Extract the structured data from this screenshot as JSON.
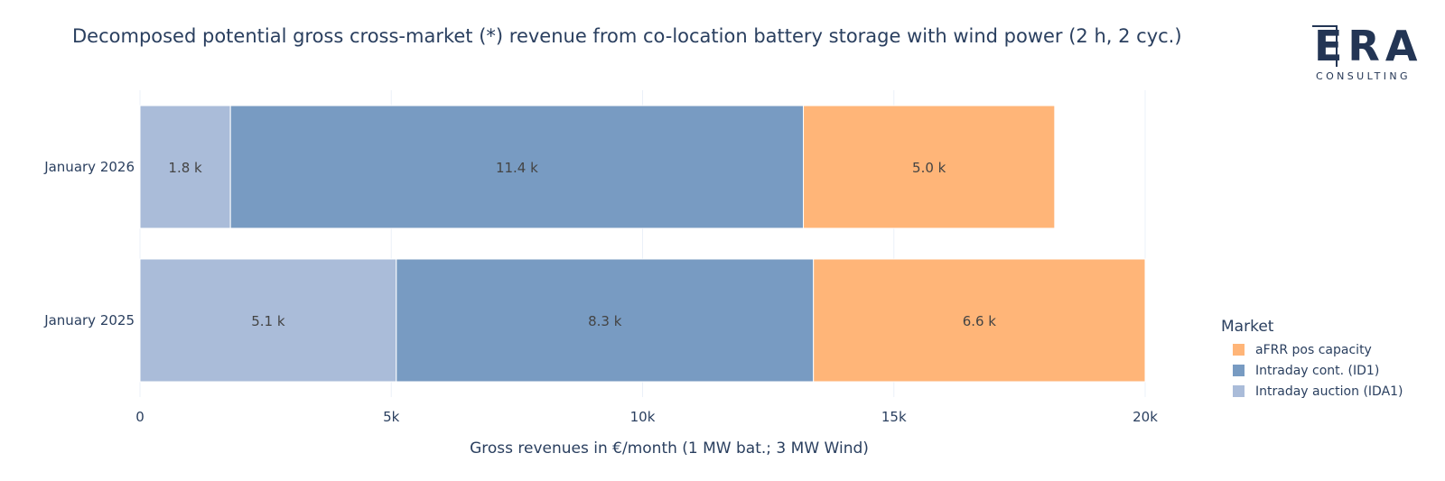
{
  "title": "Decomposed potential gross cross-market (*) revenue from co-location battery storage with wind power (2 h, 2 cyc.)",
  "logo": {
    "letters": "ERA",
    "sub": "CONSULTING"
  },
  "chart_data": {
    "type": "bar",
    "orientation": "horizontal",
    "stacked": true,
    "categories": [
      "January 2025",
      "January 2026"
    ],
    "series": [
      {
        "name": "Intraday auction (IDA1)",
        "color": "#aabcd9",
        "values": [
          5100,
          1800
        ],
        "labels": [
          "5.1 k",
          "1.8 k"
        ]
      },
      {
        "name": "Intraday cont. (ID1)",
        "color": "#789bc2",
        "values": [
          8300,
          11400
        ],
        "labels": [
          "8.3 k",
          "11.4 k"
        ]
      },
      {
        "name": "aFRR pos capacity",
        "color": "#ffb578",
        "values": [
          6600,
          5000
        ],
        "labels": [
          "6.6 k",
          "5.0 k"
        ]
      }
    ],
    "xlabel": "Gross revenues in €/month (1 MW bat.; 3 MW Wind)",
    "xlim": [
      0,
      20000
    ],
    "xticks": [
      0,
      5000,
      10000,
      15000,
      20000
    ],
    "xtick_labels": [
      "0",
      "5k",
      "10k",
      "15k",
      "20k"
    ],
    "grid": true,
    "legend": {
      "title": "Market",
      "placement": "right",
      "order": [
        "aFRR pos capacity",
        "Intraday cont. (ID1)",
        "Intraday auction (IDA1)"
      ]
    }
  }
}
